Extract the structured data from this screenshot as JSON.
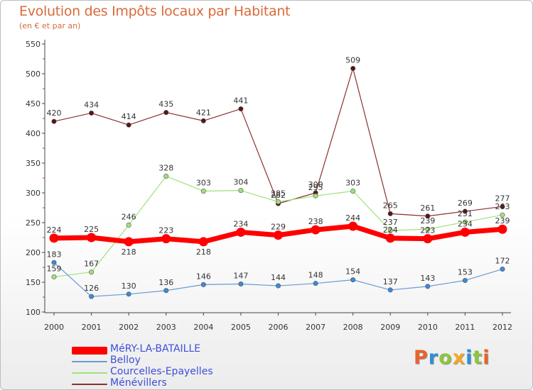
{
  "header": {
    "title": "Evolution des Impôts locaux par Habitant",
    "subtitle": "(en € et par an)"
  },
  "logo": {
    "text": "Proxiti",
    "colors": [
      "#e8632b",
      "#2f8fd8",
      "#8cc63f",
      "#f5a623",
      "#2f8fd8",
      "#8cc63f",
      "#e8632b"
    ]
  },
  "chart_data": {
    "type": "line",
    "title": "Evolution des Impôts locaux par Habitant",
    "subtitle": "(en € et par an)",
    "xlabel": "",
    "ylabel": "",
    "ylim": [
      100,
      550
    ],
    "yticks": [
      100,
      150,
      200,
      250,
      300,
      350,
      400,
      450,
      500,
      550
    ],
    "x": [
      "2000",
      "2001",
      "2002",
      "2003",
      "2004",
      "2005",
      "2006",
      "2007",
      "2008",
      "2009",
      "2010",
      "2011",
      "2012"
    ],
    "grid": false,
    "legend_position": "bottom-left",
    "series": [
      {
        "name": "MéRY-LA-BATAILLE",
        "color": "#ff0000",
        "values": [
          224,
          225,
          218,
          223,
          218,
          234,
          229,
          238,
          244,
          224,
          223,
          234,
          239
        ]
      },
      {
        "name": "Belloy",
        "color": "#6a9bd1",
        "values": [
          183,
          126,
          130,
          136,
          146,
          147,
          144,
          148,
          154,
          137,
          143,
          153,
          172
        ]
      },
      {
        "name": "Courcelles-Epayelles",
        "color": "#9fe27a",
        "values": [
          159,
          167,
          246,
          328,
          303,
          304,
          285,
          295,
          303,
          237,
          239,
          251,
          263
        ]
      },
      {
        "name": "Ménévillers",
        "color": "#8a3030",
        "values": [
          420,
          434,
          414,
          435,
          421,
          441,
          282,
          300,
          509,
          265,
          261,
          269,
          277
        ]
      }
    ],
    "value_labels": [
      [
        224,
        225,
        218,
        223,
        218,
        234,
        229,
        238,
        244,
        224,
        223,
        234,
        239
      ],
      [
        183,
        126,
        130,
        136,
        146,
        147,
        144,
        148,
        154,
        137,
        143,
        153,
        172
      ],
      [
        159,
        167,
        246,
        328,
        303,
        304,
        285,
        295,
        303,
        237,
        239,
        251,
        263
      ],
      [
        420,
        434,
        414,
        435,
        421,
        441,
        282,
        300,
        509,
        265,
        261,
        269,
        277
      ]
    ]
  }
}
